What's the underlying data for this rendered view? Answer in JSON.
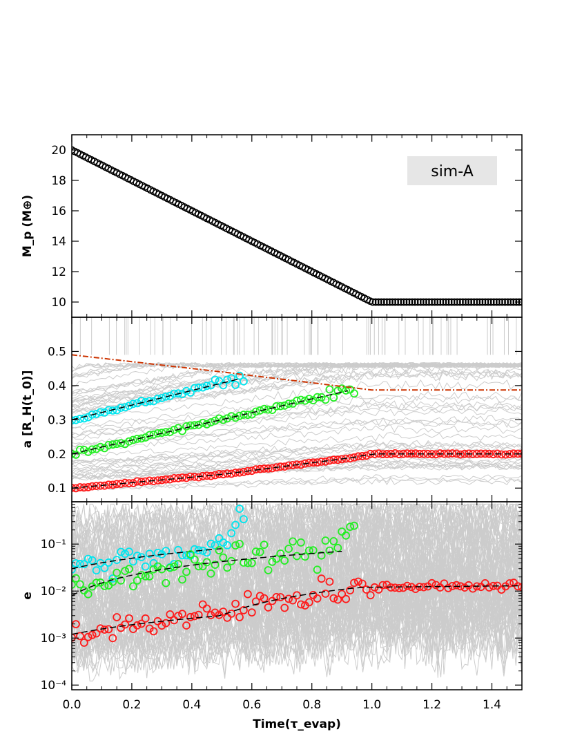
{
  "chart_data": [
    {
      "type": "scatter",
      "panel": "top",
      "badge": "sim-A",
      "ylabel": "M_p (M⊕)",
      "xlim": [
        0.0,
        1.5
      ],
      "ylim": [
        9.0,
        21.0
      ],
      "yticks": [
        10,
        12,
        14,
        16,
        18,
        20
      ],
      "ytick_labels": [
        "10",
        "12",
        "14",
        "16",
        "18",
        "20"
      ],
      "marker_color": "#000000",
      "series": [
        {
          "points": [
            [
              0.0,
              20.0
            ],
            [
              1.0,
              10.0
            ],
            [
              1.5,
              10.0
            ]
          ]
        }
      ]
    },
    {
      "type": "scatter",
      "panel": "middle",
      "ylabel": "a [R_H(t_0)]",
      "xlim": [
        0.0,
        1.5
      ],
      "ylim": [
        0.06,
        0.6
      ],
      "yticks": [
        0.1,
        0.2,
        0.3,
        0.4,
        0.5
      ],
      "ytick_labels": [
        "0.1",
        "0.2",
        "0.3",
        "0.4",
        "0.5"
      ],
      "background_color": "#cccccc",
      "series": [
        {
          "color": "#00e5ee",
          "fit": [
            [
              0.0,
              0.3
            ],
            [
              0.56,
              0.42
            ]
          ],
          "end": 0.57
        },
        {
          "color": "#22ee22",
          "fit": [
            [
              0.0,
              0.2
            ],
            [
              0.92,
              0.385
            ]
          ],
          "end": 0.94
        },
        {
          "color": "#ff1a1a",
          "fit": [
            [
              0.0,
              0.1
            ],
            [
              0.5,
              0.14
            ],
            [
              0.94,
              0.19
            ],
            [
              1.0,
              0.2
            ],
            [
              1.5,
              0.2
            ]
          ],
          "end": 1.5
        },
        {
          "name": "boundary",
          "color": "#cc3300",
          "style": "dash-dot",
          "fit": [
            [
              0.0,
              0.49
            ],
            [
              0.5,
              0.44
            ],
            [
              1.0,
              0.387
            ],
            [
              1.5,
              0.387
            ]
          ]
        }
      ]
    },
    {
      "type": "scatter",
      "panel": "bottom",
      "ylabel": "e",
      "xlim": [
        0.0,
        1.5
      ],
      "ylim_log10": [
        -4.1,
        -0.1
      ],
      "yscale": "log",
      "yticks_log10": [
        -4,
        -3,
        -2,
        -1
      ],
      "ytick_labels": [
        "10⁻⁴",
        "10⁻³",
        "10⁻²",
        "10⁻¹"
      ],
      "background_color": "#cccccc",
      "series": [
        {
          "color": "#00e5ee",
          "fit": [
            [
              0.0,
              0.03
            ],
            [
              0.5,
              0.08
            ]
          ],
          "end": 0.57
        },
        {
          "color": "#22ee22",
          "fit": [
            [
              0.0,
              0.008
            ],
            [
              0.9,
              0.07
            ]
          ],
          "end": 0.94
        },
        {
          "color": "#ff1a1a",
          "fit": [
            [
              0.0,
              0.0012
            ],
            [
              0.5,
              0.003
            ],
            [
              0.96,
              0.012
            ],
            [
              1.5,
              0.013
            ]
          ],
          "end": 1.5
        }
      ]
    }
  ],
  "xaxis": {
    "label": "Time(τ_evap)",
    "ticks": [
      0.0,
      0.2,
      0.4,
      0.6,
      0.8,
      1.0,
      1.2,
      1.4
    ],
    "tick_labels": [
      "0.0",
      "0.2",
      "0.4",
      "0.6",
      "0.8",
      "1.0",
      "1.2",
      "1.4"
    ]
  }
}
